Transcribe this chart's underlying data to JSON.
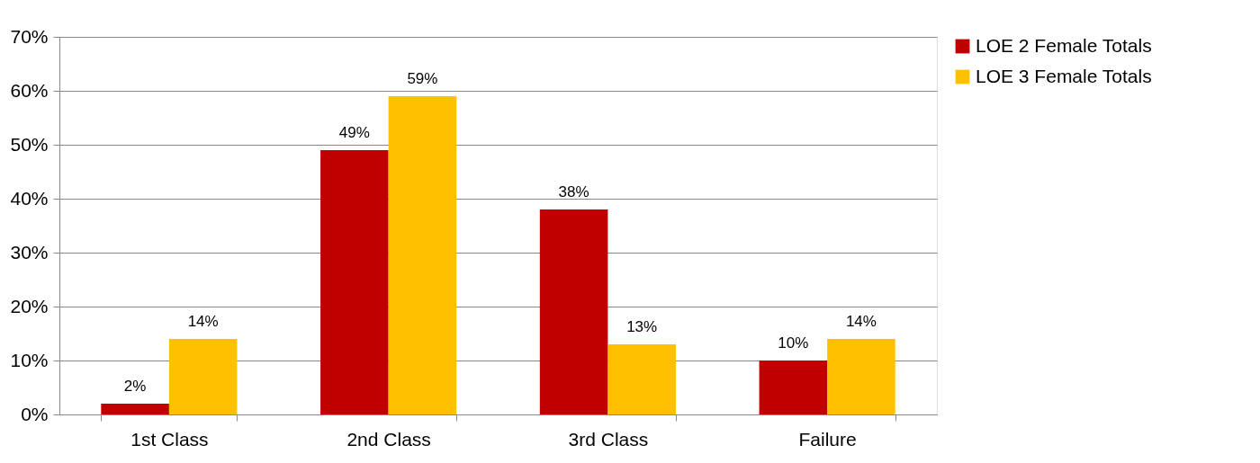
{
  "chart_data": {
    "type": "bar",
    "categories": [
      "1st Class",
      "2nd Class",
      "3rd Class",
      "Failure"
    ],
    "series": [
      {
        "name": "LOE 2 Female Totals",
        "color": "#c00000",
        "values": [
          2,
          49,
          38,
          10
        ],
        "value_labels": [
          "2%",
          "49%",
          "38%",
          "10%"
        ]
      },
      {
        "name": "LOE 3 Female Totals",
        "color": "#ffc000",
        "values": [
          14,
          59,
          13,
          14
        ],
        "value_labels": [
          "14%",
          "59%",
          "13%",
          "14%"
        ]
      }
    ],
    "ylim": [
      0,
      70
    ],
    "yticks": [
      {
        "value": 0,
        "label": "0%"
      },
      {
        "value": 10,
        "label": "10%"
      },
      {
        "value": 20,
        "label": "20%"
      },
      {
        "value": 30,
        "label": "30%"
      },
      {
        "value": 40,
        "label": "40%"
      },
      {
        "value": 50,
        "label": "50%"
      },
      {
        "value": 60,
        "label": "60%"
      },
      {
        "value": 70,
        "label": "70%"
      }
    ],
    "grid": "y",
    "legend": "right"
  }
}
